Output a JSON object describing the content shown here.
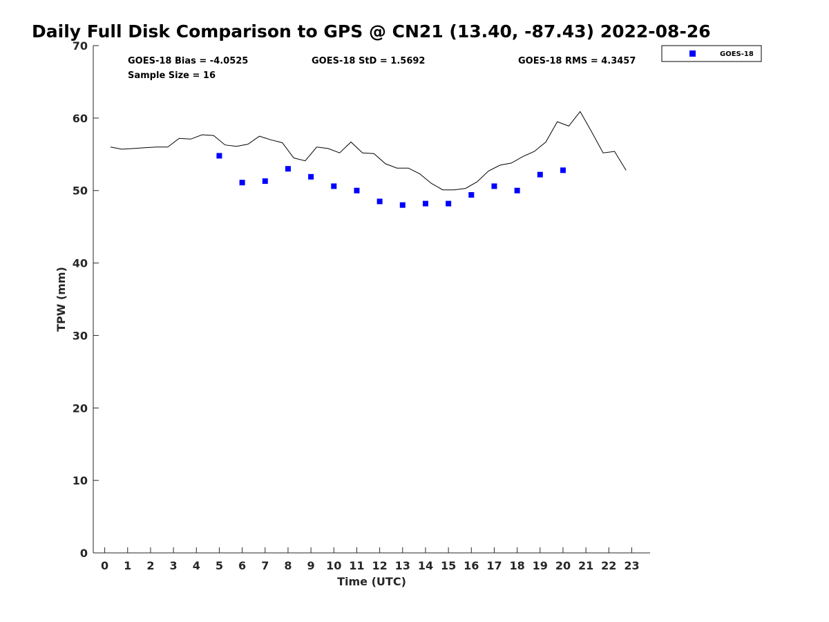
{
  "chart_data": {
    "type": "scatter",
    "title": "Daily Full Disk Comparison to GPS @ CN21 (13.40, -87.43) 2022-08-26",
    "xlabel": "Time (UTC)",
    "ylabel": "TPW (mm)",
    "xlim": [
      -0.5,
      23.8
    ],
    "ylim": [
      0,
      70
    ],
    "xticks": [
      0,
      1,
      2,
      3,
      4,
      5,
      6,
      7,
      8,
      9,
      10,
      11,
      12,
      13,
      14,
      15,
      16,
      17,
      18,
      19,
      20,
      21,
      22,
      23
    ],
    "yticks": [
      0,
      10,
      20,
      30,
      40,
      50,
      60,
      70
    ],
    "grid": false,
    "legend_position": "top-right (outside axes)",
    "stats": {
      "bias": "GOES-18 Bias = -4.0525",
      "std": "GOES-18 StD = 1.5692",
      "rms": "GOES-18 RMS = 4.3457",
      "sample_size": "Sample Size = 16"
    },
    "gps_line": {
      "color": "#000000",
      "x": [
        0.25,
        0.75,
        1.25,
        1.75,
        2.25,
        2.75,
        3.25,
        3.75,
        4.25,
        4.75,
        5.25,
        5.75,
        6.25,
        6.75,
        7.25,
        7.75,
        8.25,
        8.75,
        9.25,
        9.75,
        10.25,
        10.75,
        11.25,
        11.75,
        12.25,
        12.75,
        13.25,
        13.75,
        14.25,
        14.75,
        15.25,
        15.75,
        16.25,
        16.75,
        17.25,
        17.75,
        18.25,
        18.75,
        19.25,
        19.75,
        20.25,
        20.75,
        21.25,
        21.75,
        22.25,
        22.75
      ],
      "y": [
        56.0,
        55.7,
        55.8,
        55.9,
        56.0,
        56.0,
        57.2,
        57.1,
        57.7,
        57.6,
        56.3,
        56.1,
        56.4,
        57.5,
        57.0,
        56.6,
        54.5,
        54.1,
        56.0,
        55.8,
        55.2,
        56.7,
        55.2,
        55.1,
        53.7,
        53.1,
        53.1,
        52.3,
        51.0,
        50.1,
        50.1,
        50.3,
        51.2,
        52.7,
        53.5,
        53.8,
        54.7,
        55.4,
        56.7,
        59.5,
        58.9,
        60.9,
        58.1,
        55.2,
        55.4,
        52.8
      ]
    },
    "series": [
      {
        "name": "GOES-18",
        "color": "#0000ff",
        "marker": "square",
        "x": [
          5,
          6,
          7,
          8,
          9,
          10,
          11,
          12,
          13,
          14,
          15,
          16,
          17,
          18,
          19,
          20
        ],
        "y": [
          54.8,
          51.1,
          51.3,
          53.0,
          51.9,
          50.6,
          50.0,
          48.5,
          48.0,
          48.2,
          48.2,
          49.4,
          50.6,
          50.0,
          52.2,
          52.8
        ]
      }
    ]
  }
}
